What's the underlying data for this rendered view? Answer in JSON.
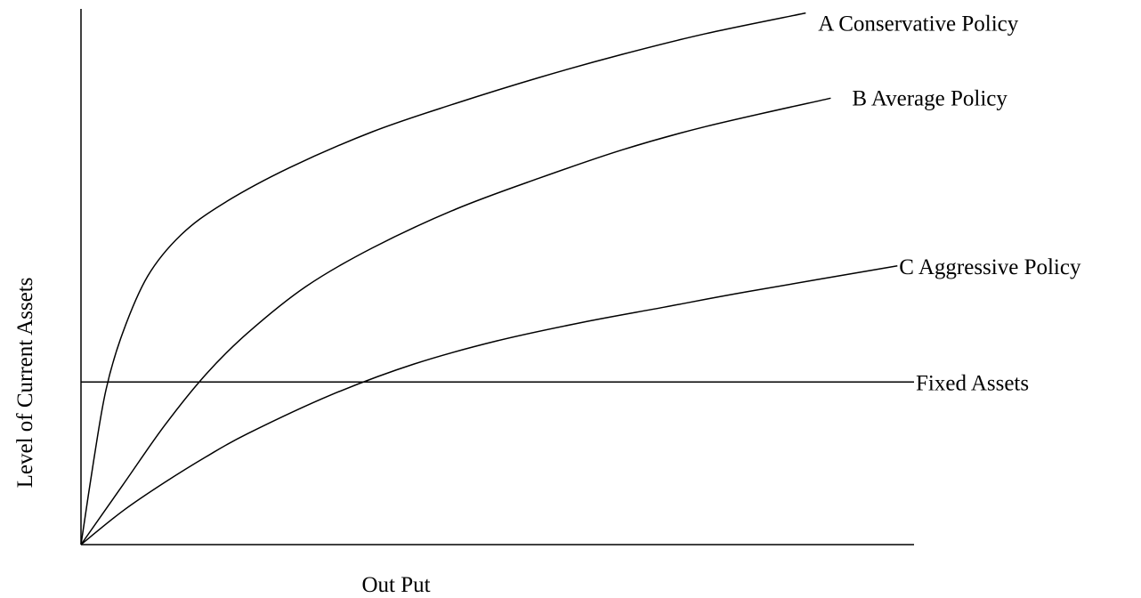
{
  "chart_data": {
    "type": "line",
    "title": "",
    "xlabel": "Out Put",
    "ylabel": "Level of Current Assets",
    "grid": false,
    "legend": "none",
    "xlim": [
      0,
      100
    ],
    "ylim": [
      0,
      100
    ],
    "series": [
      {
        "name": "A Conservative Policy",
        "x": [
          0,
          1.5,
          3,
          5,
          8,
          12,
          17,
          25,
          35,
          45,
          55,
          65,
          75,
          87
        ],
        "values": [
          0,
          16,
          30,
          41,
          52,
          60,
          66,
          73,
          80,
          85.5,
          90.5,
          95,
          99,
          103
        ]
      },
      {
        "name": "B Average Policy",
        "x": [
          0,
          5,
          10,
          15,
          20,
          27,
          35,
          45,
          55,
          65,
          75,
          90
        ],
        "values": [
          0,
          11.5,
          23,
          33,
          41,
          50,
          57.5,
          65,
          71,
          76.5,
          81,
          86.5
        ]
      },
      {
        "name": "C Aggressive Policy",
        "x": [
          0,
          5,
          10,
          15,
          20,
          30,
          40,
          50,
          60,
          70,
          80,
          98
        ],
        "values": [
          0,
          6.5,
          12,
          17,
          21.5,
          29,
          35,
          39.5,
          43,
          46,
          49,
          54
        ]
      },
      {
        "name": "Fixed Assets",
        "x": [
          0,
          100
        ],
        "values": [
          31.5,
          31.5
        ]
      }
    ]
  }
}
